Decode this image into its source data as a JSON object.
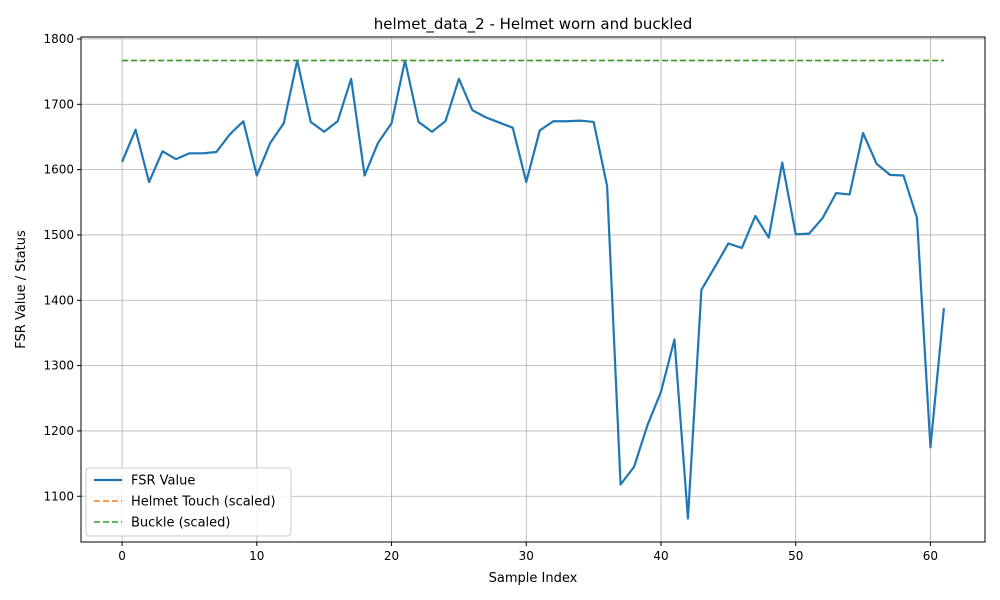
{
  "chart_data": {
    "type": "line",
    "title": "helmet_data_2 - Helmet worn and buckled",
    "xlabel": "Sample Index",
    "ylabel": "FSR Value / Status",
    "xlim": [
      -3.05,
      64.05
    ],
    "ylim": [
      1030,
      1803
    ],
    "x_ticks": [
      0,
      10,
      20,
      30,
      40,
      50,
      60
    ],
    "y_ticks": [
      1100,
      1200,
      1300,
      1400,
      1500,
      1600,
      1700,
      1800
    ],
    "grid": true,
    "legend_position": "lower-left",
    "series": [
      {
        "name": "FSR Value",
        "color": "#1f77b4",
        "style": "solid",
        "x": [
          0,
          1,
          2,
          3,
          4,
          5,
          6,
          7,
          8,
          9,
          10,
          11,
          12,
          13,
          14,
          15,
          16,
          17,
          18,
          19,
          20,
          21,
          22,
          23,
          24,
          25,
          26,
          27,
          28,
          29,
          30,
          31,
          32,
          33,
          34,
          35,
          36,
          37,
          38,
          39,
          40,
          41,
          42,
          43,
          44,
          45,
          46,
          47,
          48,
          49,
          50,
          51,
          52,
          53,
          54,
          55,
          56,
          57,
          58,
          59,
          60,
          61
        ],
        "values": [
          1612,
          1661,
          1581,
          1628,
          1616,
          1625,
          1625,
          1627,
          1654,
          1674,
          1591,
          1641,
          1671,
          1767,
          1673,
          1658,
          1674,
          1739,
          1591,
          1641,
          1671,
          1767,
          1673,
          1658,
          1674,
          1739,
          1691,
          1680,
          1672,
          1664,
          1581,
          1660,
          1674,
          1674,
          1675,
          1673,
          1575,
          1118,
          1145,
          1209,
          1260,
          1340,
          1066,
          1416,
          1451,
          1487,
          1480,
          1529,
          1496,
          1611,
          1501,
          1502,
          1526,
          1564,
          1562,
          1656,
          1609,
          1592,
          1591,
          1526,
          1175,
          1388
        ]
      },
      {
        "name": "Helmet Touch (scaled)",
        "color": "#ff7f0e",
        "style": "dashed",
        "x": [
          0,
          61
        ],
        "values": [
          1767,
          1767
        ]
      },
      {
        "name": "Buckle (scaled)",
        "color": "#2ca02c",
        "style": "dashed",
        "x": [
          0,
          61
        ],
        "values": [
          1767,
          1767
        ]
      }
    ]
  }
}
